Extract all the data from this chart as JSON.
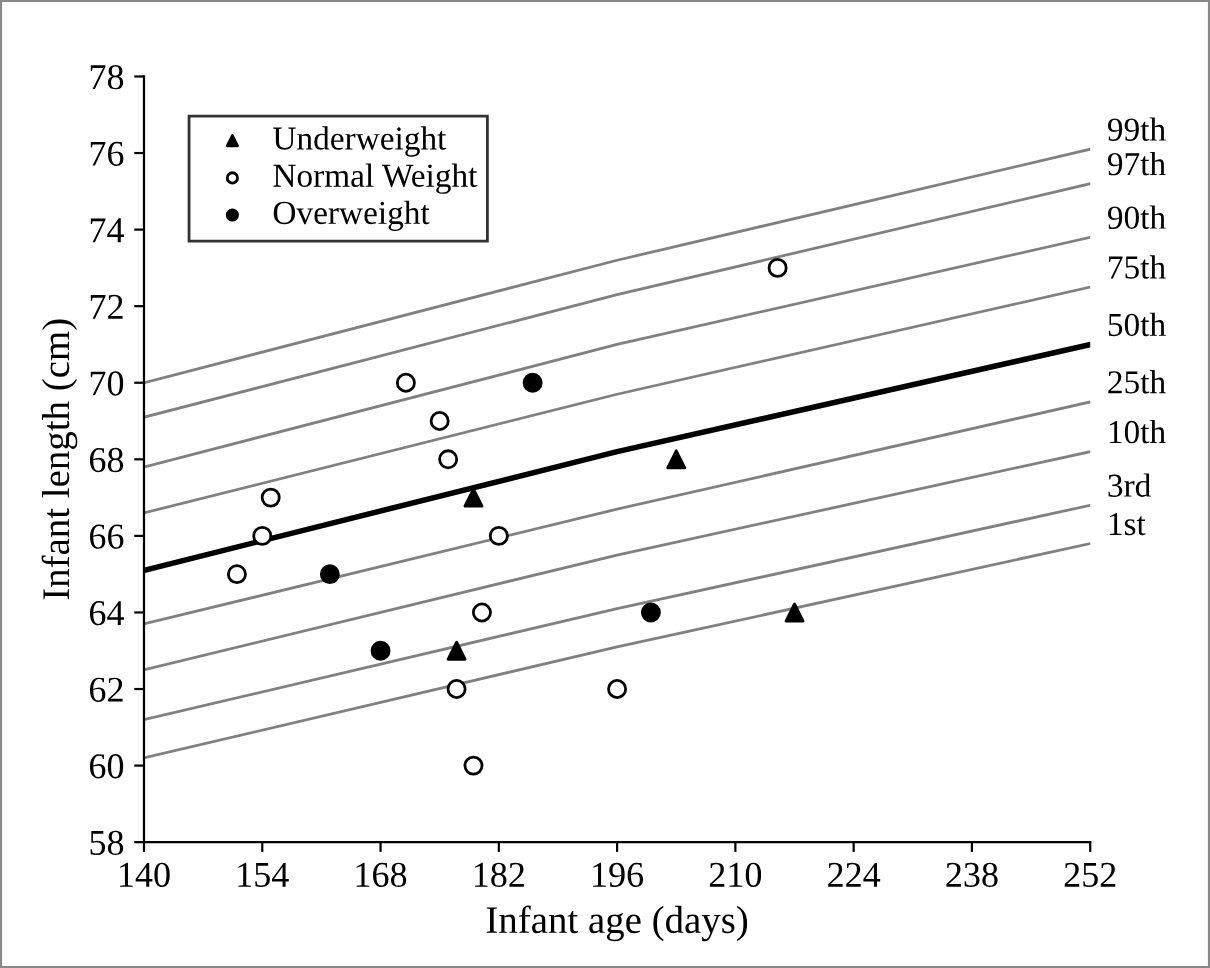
{
  "chart_data": {
    "type": "scatter",
    "xlabel": "Infant age (days)",
    "ylabel": "Infant length (cm)",
    "xlim": [
      140,
      252
    ],
    "xticks": [
      140,
      154,
      168,
      182,
      196,
      210,
      224,
      238,
      252
    ],
    "ylim": [
      58,
      78
    ],
    "yticks": [
      58,
      60,
      62,
      64,
      66,
      68,
      70,
      72,
      74,
      76,
      78
    ],
    "grid": false,
    "legend": "top left",
    "series": [
      {
        "name": "Underweight",
        "marker": "triangle",
        "color": "#000000",
        "x": [
          179,
          177,
          203,
          217
        ],
        "values": [
          67,
          63,
          68,
          64
        ]
      },
      {
        "name": "Normal Weight",
        "marker": "circle",
        "color": "#ffffff",
        "x": [
          151,
          154,
          155,
          171,
          175,
          176,
          182,
          180,
          177,
          179,
          196,
          215
        ],
        "values": [
          65,
          66,
          67,
          70,
          69,
          68,
          66,
          64,
          62,
          60,
          62,
          73
        ]
      },
      {
        "name": "Overweight",
        "marker": "circle",
        "color": "#000000",
        "x": [
          162,
          168,
          186,
          200
        ],
        "values": [
          65,
          63,
          70,
          64
        ]
      },
      {
        "name": "99th",
        "type": "line",
        "color": "#808080",
        "x": [
          140,
          196,
          252
        ],
        "values": [
          70.0,
          73.2,
          76.1
        ]
      },
      {
        "name": "97th",
        "type": "line",
        "color": "#808080",
        "x": [
          140,
          196,
          252
        ],
        "values": [
          69.1,
          72.3,
          75.2
        ]
      },
      {
        "name": "90th",
        "type": "line",
        "color": "#808080",
        "x": [
          140,
          196,
          252
        ],
        "values": [
          67.8,
          71.0,
          73.8
        ]
      },
      {
        "name": "75th",
        "type": "line",
        "color": "#808080",
        "x": [
          140,
          196,
          252
        ],
        "values": [
          66.6,
          69.7,
          72.5
        ]
      },
      {
        "name": "50th",
        "type": "line",
        "color": "#000000",
        "x": [
          140,
          196,
          252
        ],
        "values": [
          65.1,
          68.2,
          71.0
        ]
      },
      {
        "name": "25th",
        "type": "line",
        "color": "#808080",
        "x": [
          140,
          196,
          252
        ],
        "values": [
          63.7,
          66.7,
          69.5
        ]
      },
      {
        "name": "10th",
        "type": "line",
        "color": "#808080",
        "x": [
          140,
          196,
          252
        ],
        "values": [
          62.5,
          65.5,
          68.2
        ]
      },
      {
        "name": "3rd",
        "type": "line",
        "color": "#808080",
        "x": [
          140,
          196,
          252
        ],
        "values": [
          61.2,
          64.1,
          66.8
        ]
      },
      {
        "name": "1st",
        "type": "line",
        "color": "#808080",
        "x": [
          140,
          196,
          252
        ],
        "values": [
          60.2,
          63.1,
          65.8
        ]
      }
    ]
  }
}
